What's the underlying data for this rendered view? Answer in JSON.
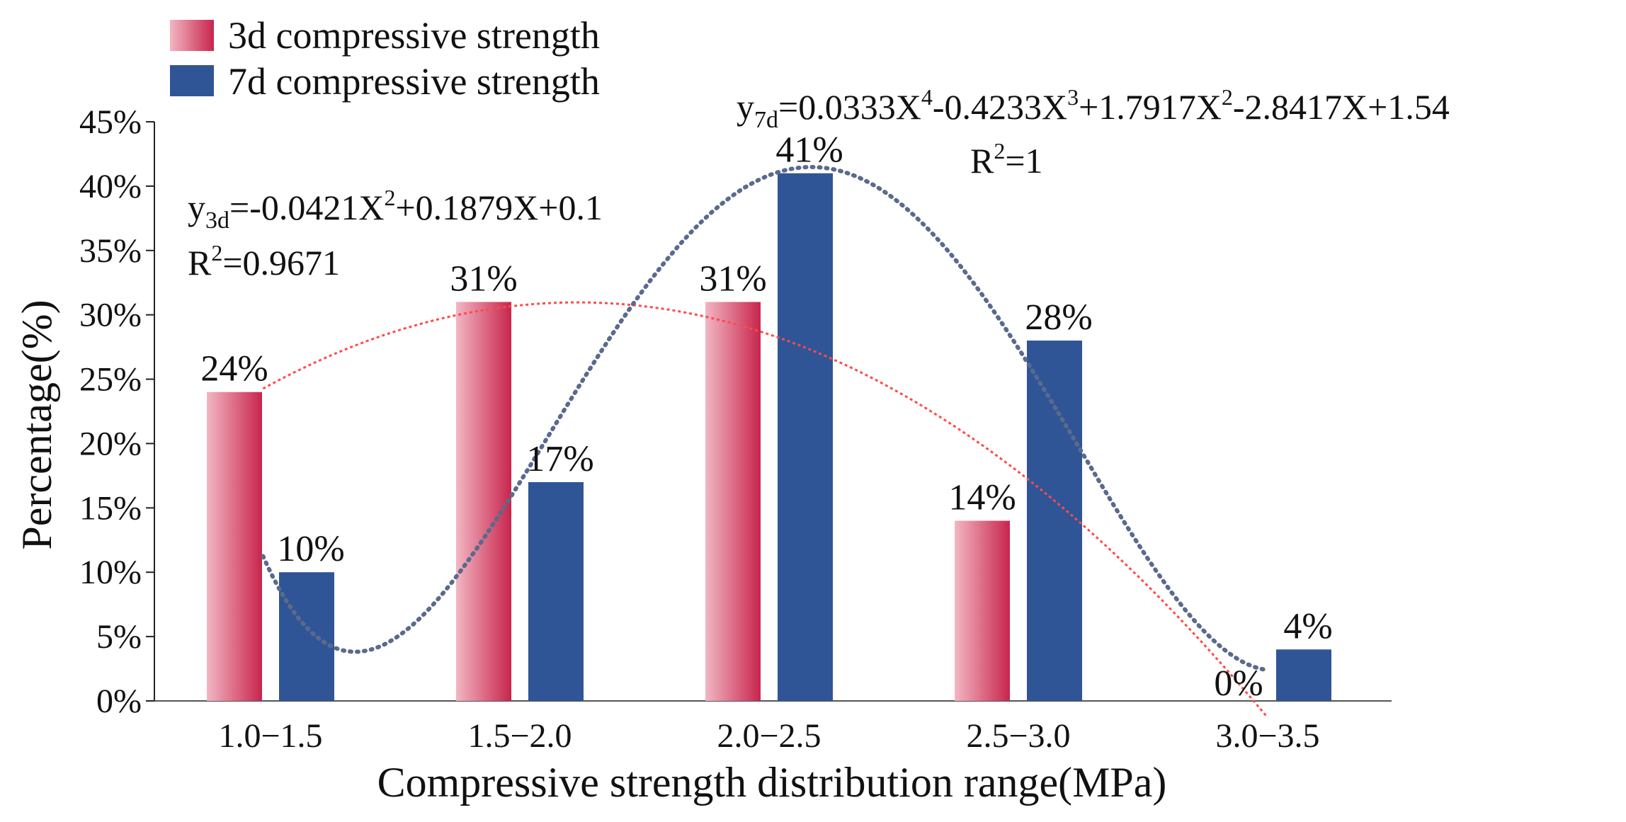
{
  "chart_data": {
    "type": "bar",
    "xlabel": "Compressive strength distribution range(MPa)",
    "ylabel": "Percentage(%)",
    "ylim": [
      0,
      45
    ],
    "yticks": [
      "0%",
      "5%",
      "10%",
      "15%",
      "20%",
      "25%",
      "30%",
      "35%",
      "40%",
      "45%"
    ],
    "categories": [
      "1.0−1.5",
      "1.5−2.0",
      "2.0−2.5",
      "2.5−3.0",
      "3.0−3.5"
    ],
    "series": [
      {
        "name": "3d compressive strength",
        "values": [
          24,
          31,
          31,
          14,
          0
        ],
        "labels": [
          "24%",
          "31%",
          "31%",
          "14%",
          "0%"
        ],
        "color_light": "#f2b6c3",
        "color_dark": "#c8254c",
        "trend_color": "#ff4a4a"
      },
      {
        "name": "7d compressive strength",
        "values": [
          10,
          17,
          41,
          28,
          4
        ],
        "labels": [
          "10%",
          "17%",
          "41%",
          "28%",
          "4%"
        ],
        "color": "#2f5597",
        "trend_color": "#5a6a8c"
      }
    ],
    "legend_position": "top-left",
    "annotations": {
      "eq3d": {
        "y": "y",
        "sub": "3d",
        "a": "=-0.0421X",
        "p1": "2",
        "b": "+0.1879X+0.1"
      },
      "r2_3d": {
        "r": "R",
        "p": "2",
        "v": "=0.9671"
      },
      "eq7d": {
        "y": "y",
        "sub": "7d",
        "a": "=0.0333X",
        "p1": "4",
        "b": "-0.4233X",
        "p2": "3",
        "c": "+1.7917X",
        "p3": "2",
        "d": "-2.8417X+1.54"
      },
      "r2_7d": {
        "r": "R",
        "p": "2",
        "v": "=1"
      }
    }
  }
}
